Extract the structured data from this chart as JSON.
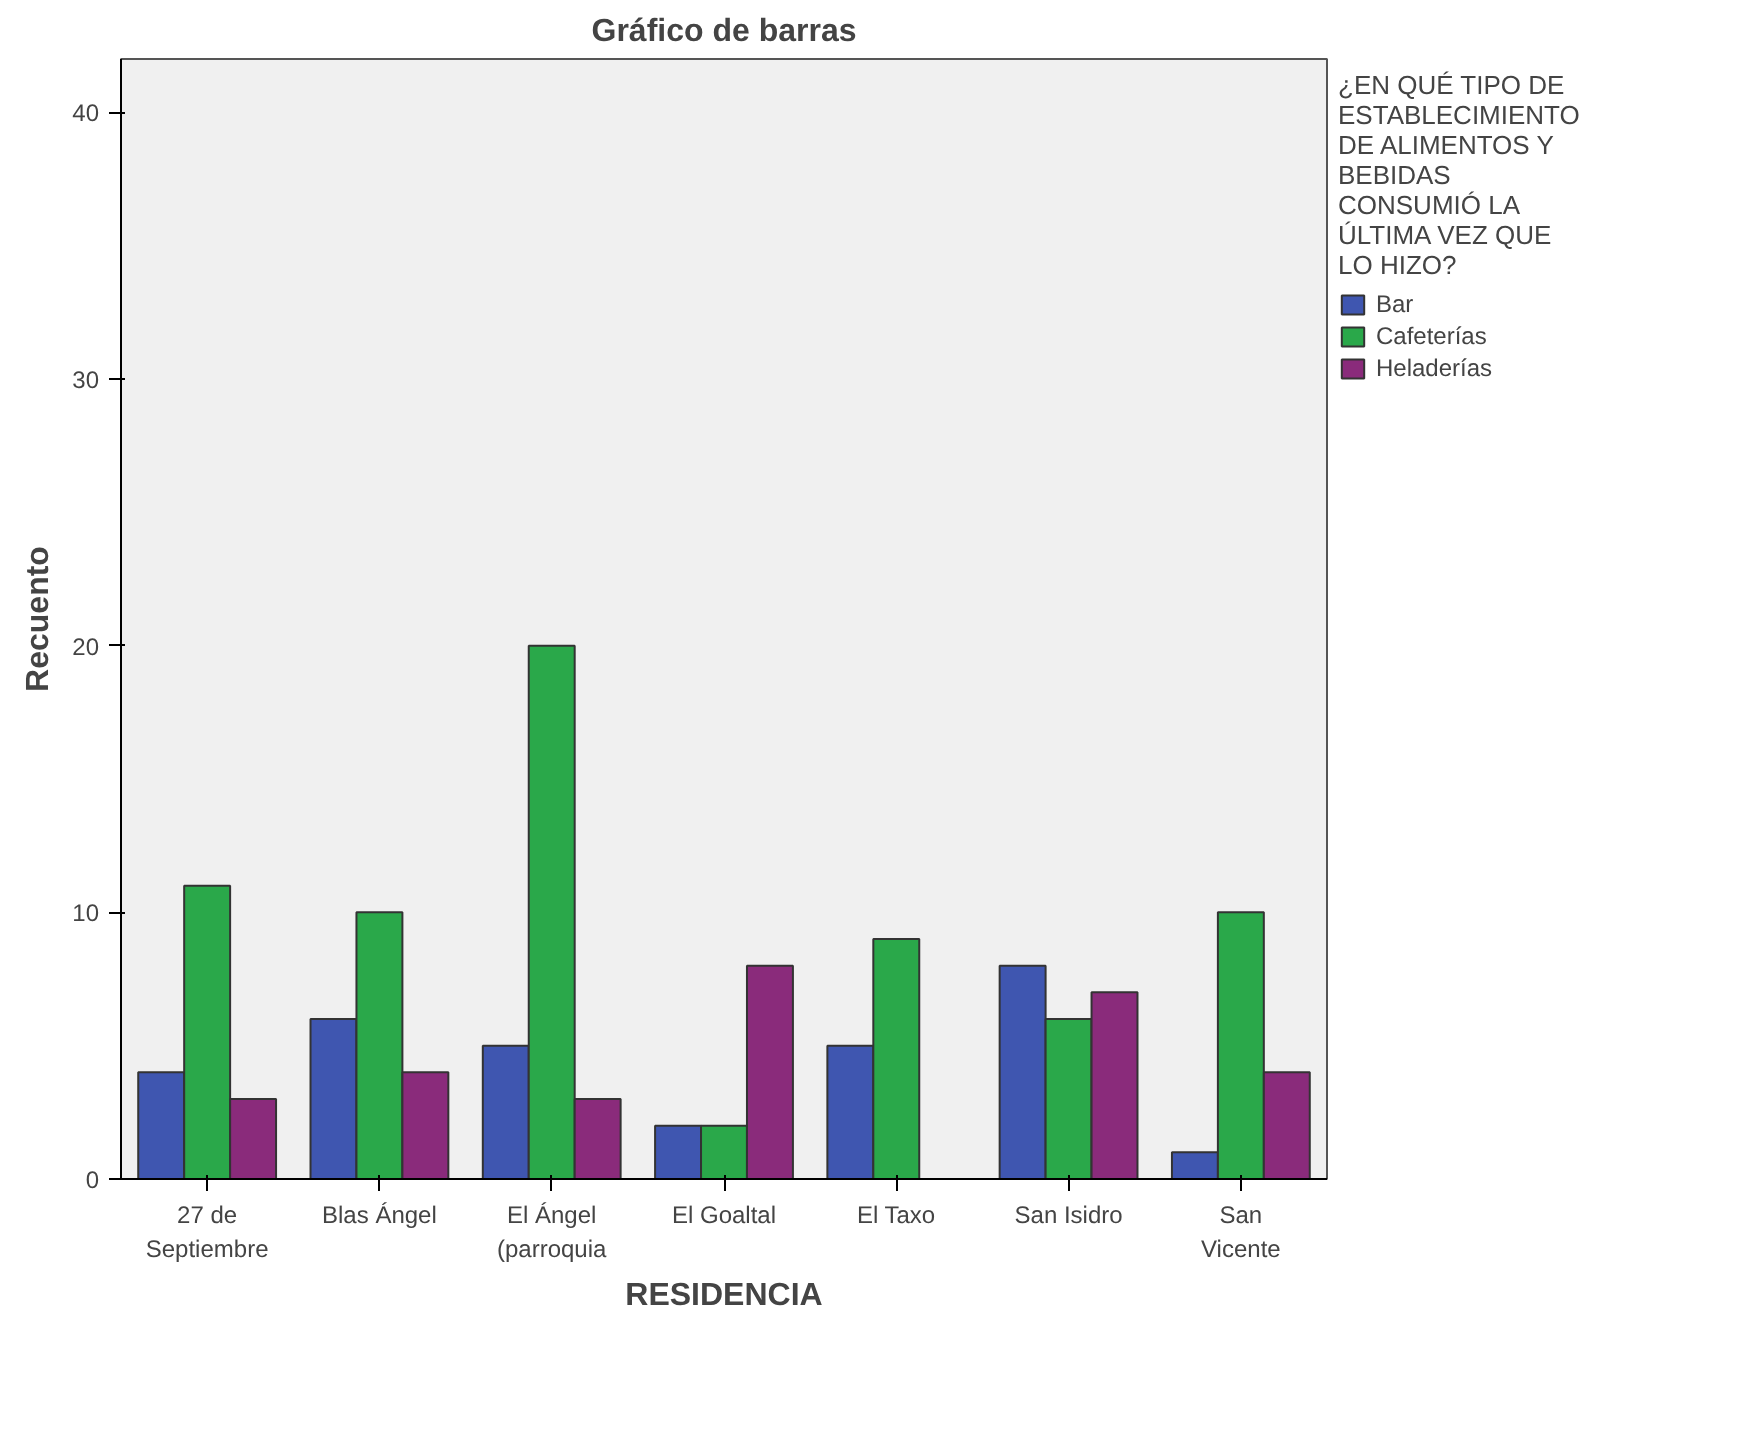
{
  "chart_data": {
    "type": "bar",
    "title": "Gráfico de barras",
    "xlabel": "RESIDENCIA",
    "ylabel": "Recuento",
    "legend_title": "¿EN QUÉ TIPO DE ESTABLECIMIENTO DE ALIMENTOS Y BEBIDAS CONSUMIÓ LA ÚLTIMA VEZ QUE LO HIZO?",
    "categories": [
      "27 de Septiembre",
      "Blas Ángel",
      "El Ángel (parroquia",
      "El Goaltal",
      "El Taxo",
      "San Isidro",
      "San Vicente"
    ],
    "series": [
      {
        "name": "Bar",
        "color": "#3f56b0",
        "values": [
          4,
          6,
          5,
          2,
          5,
          8,
          1
        ]
      },
      {
        "name": "Cafeterías",
        "color": "#2aa84a",
        "values": [
          11,
          10,
          20,
          2,
          9,
          6,
          10
        ]
      },
      {
        "name": "Heladerías",
        "color": "#8a2b7b",
        "values": [
          3,
          4,
          3,
          8,
          null,
          7,
          4
        ]
      }
    ],
    "ylim": [
      0,
      42
    ],
    "yticks": [
      0,
      10,
      20,
      30,
      40
    ],
    "grid": false,
    "legend": "right"
  }
}
